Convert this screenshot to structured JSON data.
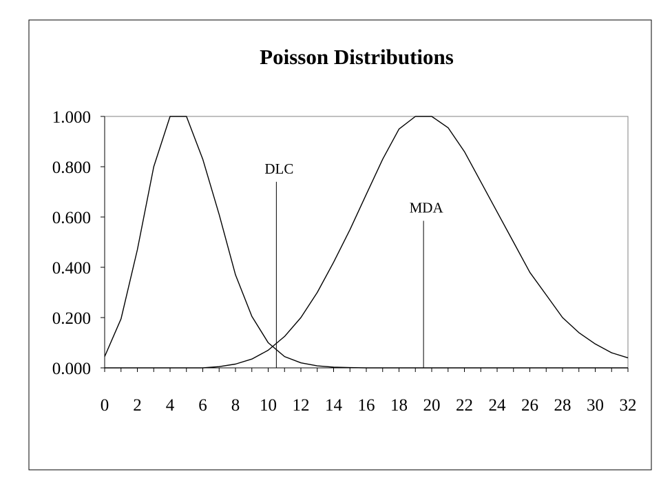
{
  "chart_data": {
    "type": "line",
    "title": "Poisson Distributions",
    "xlabel": "",
    "ylabel": "",
    "xlim": [
      0,
      32
    ],
    "ylim": [
      0,
      1
    ],
    "grid": false,
    "legend": "none",
    "x_ticks": [
      "0",
      "2",
      "4",
      "6",
      "8",
      "10",
      "12",
      "14",
      "16",
      "18",
      "20",
      "22",
      "24",
      "26",
      "28",
      "30",
      "32"
    ],
    "y_ticks": [
      "0.000",
      "0.200",
      "0.400",
      "0.600",
      "0.800",
      "1.000"
    ],
    "series": [
      {
        "x": [
          0,
          1,
          2,
          3,
          4,
          5,
          6,
          7,
          8,
          9,
          10,
          11,
          12,
          13,
          14,
          15,
          16,
          17,
          18,
          19,
          20,
          21,
          22,
          23,
          24,
          25,
          26,
          27,
          28,
          29,
          30,
          31,
          32
        ],
        "values": [
          0.045,
          0.195,
          0.47,
          0.8,
          1.0,
          1.0,
          0.83,
          0.61,
          0.37,
          0.205,
          0.1,
          0.045,
          0.02,
          0.008,
          0.003,
          0.001,
          0,
          0,
          0,
          0,
          0,
          0,
          0,
          0,
          0,
          0,
          0,
          0,
          0,
          0,
          0,
          0,
          0
        ]
      },
      {
        "x": [
          0,
          1,
          2,
          3,
          4,
          5,
          6,
          7,
          8,
          9,
          10,
          11,
          12,
          13,
          14,
          15,
          16,
          17,
          18,
          19,
          20,
          21,
          22,
          23,
          24,
          25,
          26,
          27,
          28,
          29,
          30,
          31,
          32
        ],
        "values": [
          0,
          0,
          0,
          0,
          0,
          0,
          0,
          0.005,
          0.015,
          0.035,
          0.07,
          0.125,
          0.2,
          0.3,
          0.42,
          0.55,
          0.69,
          0.83,
          0.95,
          1.0,
          1.0,
          0.955,
          0.86,
          0.74,
          0.62,
          0.5,
          0.38,
          0.29,
          0.2,
          0.14,
          0.095,
          0.06,
          0.04
        ]
      }
    ],
    "annotations": [
      {
        "text": "DLC",
        "x": 10.5,
        "y_top": 0.74
      },
      {
        "text": "MDA",
        "x": 19.5,
        "y_top": 0.585
      }
    ]
  },
  "colors": {
    "line": "#000000",
    "background": "#ffffff"
  }
}
